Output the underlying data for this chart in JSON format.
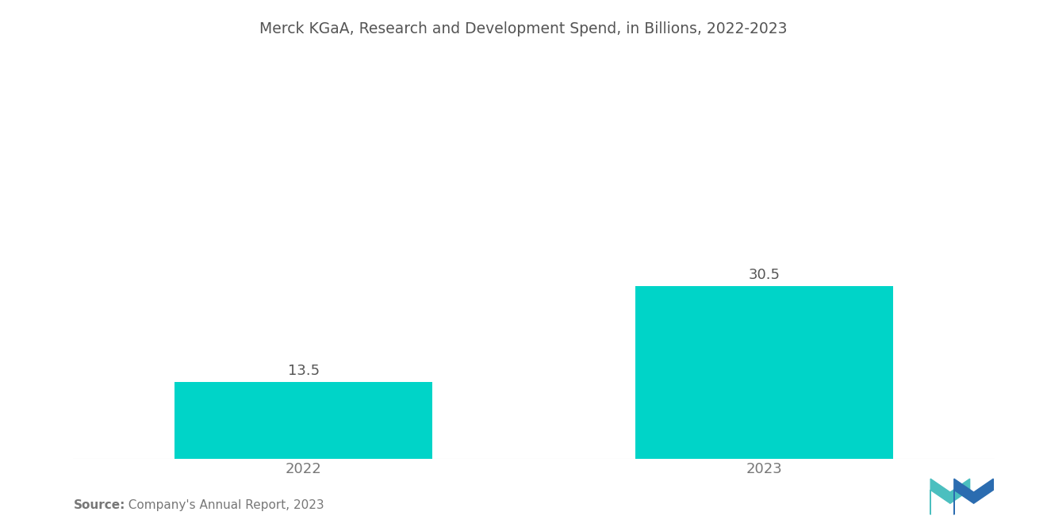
{
  "title": "Merck KGaA, Research and Development Spend, in Billions, 2022-2023",
  "categories": [
    "2022",
    "2023"
  ],
  "values": [
    13.5,
    30.5
  ],
  "bar_color": "#00D4C8",
  "background_color": "#ffffff",
  "title_color": "#555555",
  "label_color": "#555555",
  "tick_color": "#777777",
  "ylim": [
    0,
    70
  ],
  "bar_width": 0.28,
  "x_positions": [
    0.25,
    0.75
  ],
  "xlim": [
    0.0,
    1.0
  ],
  "title_fontsize": 13.5,
  "label_fontsize": 13,
  "tick_fontsize": 13,
  "source_bold": "Source:",
  "source_normal": "  Company's Annual Report, 2023",
  "source_fontsize": 11
}
